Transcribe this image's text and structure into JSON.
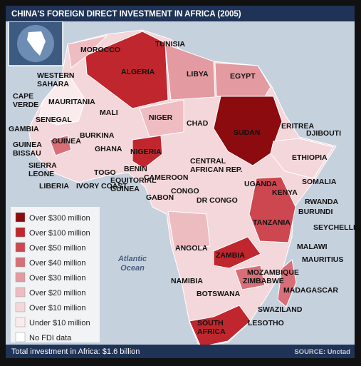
{
  "title": "CHINA'S FOREIGN DIRECT INVESTMENT IN AFRICA (2005)",
  "ocean": [
    "Atlantic",
    "Ocean"
  ],
  "legend": [
    {
      "label": "Over $300 million",
      "color": "#8b0b0f"
    },
    {
      "label": "Over $100 million",
      "color": "#c0262d"
    },
    {
      "label": "Over $50 million",
      "color": "#cd4750"
    },
    {
      "label": "Over $40 million",
      "color": "#d86f78"
    },
    {
      "label": "Over $30 million",
      "color": "#e39aa1"
    },
    {
      "label": "Over $20 million",
      "color": "#edbcc1"
    },
    {
      "label": "Over $10 million",
      "color": "#f4d7da"
    },
    {
      "label": "Under $10 million",
      "color": "#faeced"
    },
    {
      "label": "No FDI data",
      "color": "#ffffff"
    }
  ],
  "countries": [
    {
      "lines": [
        "MOROCCO"
      ]
    },
    {
      "lines": [
        "TUNISIA"
      ]
    },
    {
      "lines": [
        "ALGERIA"
      ]
    },
    {
      "lines": [
        "LIBYA"
      ]
    },
    {
      "lines": [
        "EGYPT"
      ]
    },
    {
      "lines": [
        "WESTERN",
        "SAHARA"
      ]
    },
    {
      "lines": [
        "CAPE",
        "VERDE"
      ]
    },
    {
      "lines": [
        "MAURITANIA"
      ]
    },
    {
      "lines": [
        "MALI"
      ]
    },
    {
      "lines": [
        "NIGER"
      ]
    },
    {
      "lines": [
        "CHAD"
      ]
    },
    {
      "lines": [
        "SUDAN"
      ]
    },
    {
      "lines": [
        "ERITREA"
      ]
    },
    {
      "lines": [
        "DJIBOUTI"
      ]
    },
    {
      "lines": [
        "SENEGAL"
      ]
    },
    {
      "lines": [
        "GAMBIA"
      ]
    },
    {
      "lines": [
        "BURKINA"
      ]
    },
    {
      "lines": [
        "GUINEA",
        "BISSAU"
      ]
    },
    {
      "lines": [
        "GUINEA"
      ]
    },
    {
      "lines": [
        "GHANA"
      ]
    },
    {
      "lines": [
        "NIGERIA"
      ]
    },
    {
      "lines": [
        "ETHIOPIA"
      ]
    },
    {
      "lines": [
        "SIERRA",
        "LEONE"
      ]
    },
    {
      "lines": [
        "TOGO"
      ]
    },
    {
      "lines": [
        "BENIN"
      ]
    },
    {
      "lines": [
        "CENTRAL",
        "AFRICAN REP."
      ]
    },
    {
      "lines": [
        "CAMEROON"
      ]
    },
    {
      "lines": [
        "LIBERIA"
      ]
    },
    {
      "lines": [
        "IVORY COAST"
      ]
    },
    {
      "lines": [
        "EQUITORIAL",
        "GUINEA"
      ]
    },
    {
      "lines": [
        "GABON"
      ]
    },
    {
      "lines": [
        "CONGO"
      ]
    },
    {
      "lines": [
        "DR CONGO"
      ]
    },
    {
      "lines": [
        "UGANDA"
      ]
    },
    {
      "lines": [
        "KENYA"
      ]
    },
    {
      "lines": [
        "SOMALIA"
      ]
    },
    {
      "lines": [
        "RWANDA"
      ]
    },
    {
      "lines": [
        "BURUNDI"
      ]
    },
    {
      "lines": [
        "TANZANIA"
      ]
    },
    {
      "lines": [
        "SEYCHELLES"
      ]
    },
    {
      "lines": [
        "ANGOLA"
      ]
    },
    {
      "lines": [
        "ZAMBIA"
      ]
    },
    {
      "lines": [
        "MALAWI"
      ]
    },
    {
      "lines": [
        "MAURITIUS"
      ]
    },
    {
      "lines": [
        "MOZAMBIQUE"
      ]
    },
    {
      "lines": [
        "NAMIBIA"
      ]
    },
    {
      "lines": [
        "ZIMBABWE"
      ]
    },
    {
      "lines": [
        "BOTSWANA"
      ]
    },
    {
      "lines": [
        "MADAGASCAR"
      ]
    },
    {
      "lines": [
        "SWAZILAND"
      ]
    },
    {
      "lines": [
        "SOUTH",
        "AFRICA"
      ]
    },
    {
      "lines": [
        "LESOTHO"
      ]
    }
  ],
  "footer": {
    "total": "Total investment in Africa: $1.6 billion",
    "source": "SOURCE: Unctad"
  }
}
